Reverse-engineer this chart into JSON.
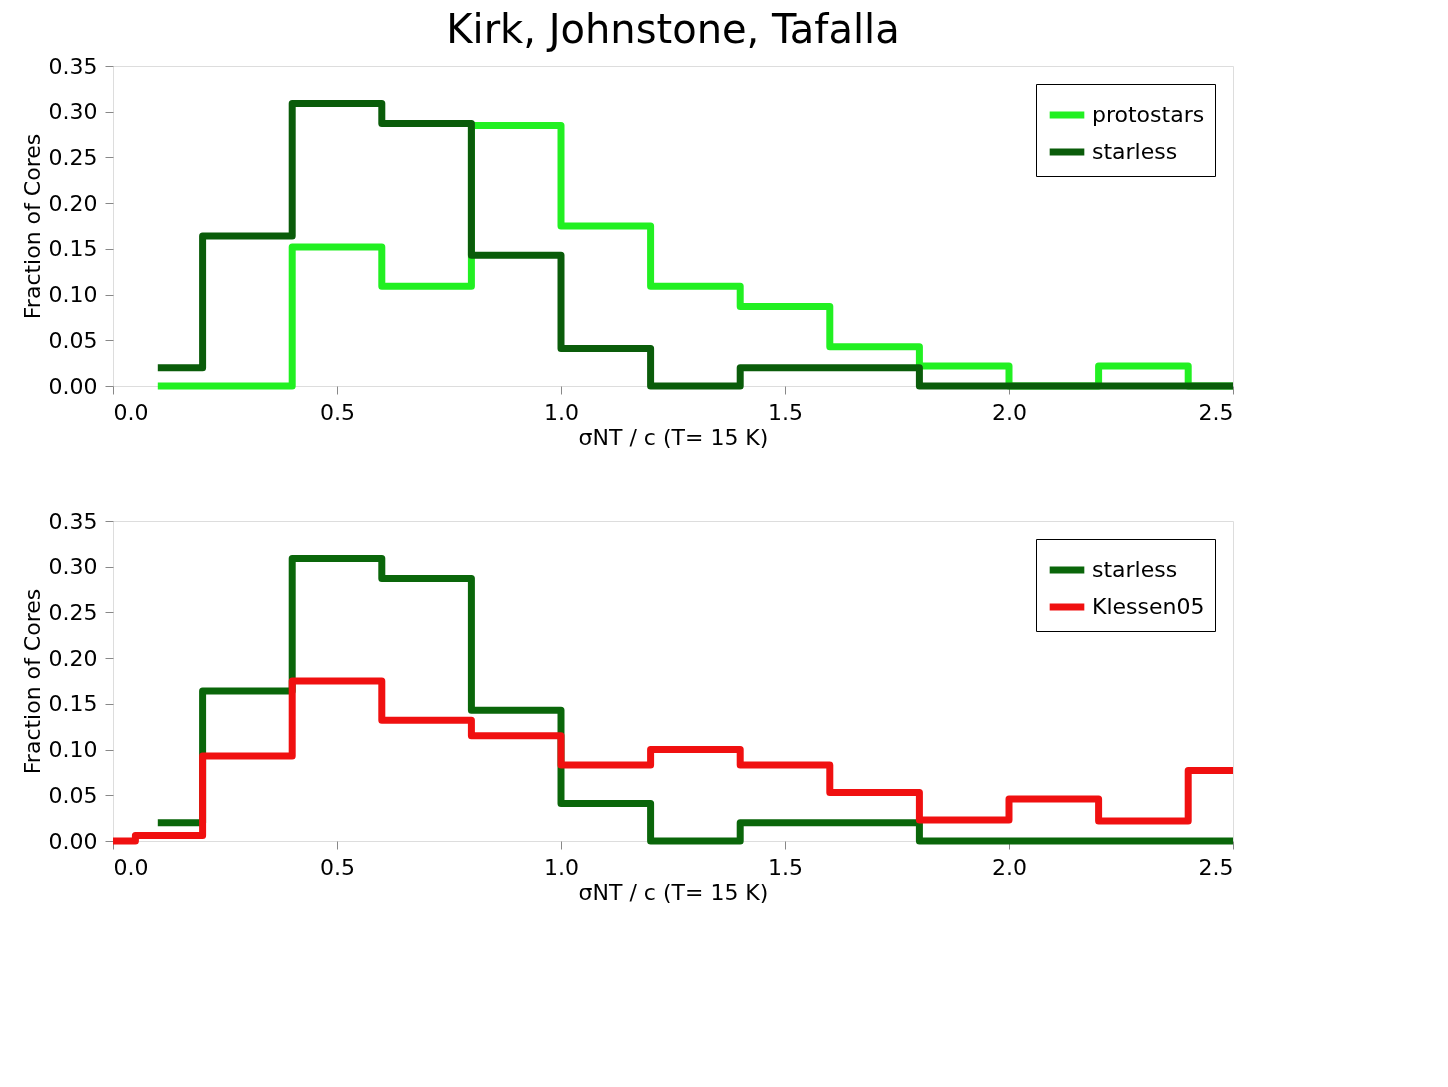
{
  "chart_data": [
    {
      "type": "histogram",
      "title": "Kirk, Johnstone, Tafalla",
      "xlabel": "σNT / c (T= 15 K)",
      "ylabel": "Fraction of Cores",
      "legend": "top right",
      "grid": false,
      "bins": [
        0.1,
        0.2,
        0.4,
        0.6,
        0.8,
        1.0,
        1.2,
        1.4,
        1.6,
        1.8,
        2.0,
        2.2,
        2.4,
        2.5
      ],
      "series": [
        {
          "name": "protostars",
          "color": "#22f022",
          "values": [
            0,
            0,
            0.152,
            0.109,
            0.285,
            0.175,
            0.109,
            0.087,
            0.043,
            0.022,
            0,
            0.022,
            0
          ]
        },
        {
          "name": "starless",
          "color": "#0a5c0a",
          "values": [
            0.02,
            0.164,
            0.309,
            0.287,
            0.143,
            0.041,
            0,
            0.02,
            0.02,
            0,
            0,
            0,
            0
          ]
        }
      ],
      "xlim": [
        0,
        2.5
      ],
      "ylim": [
        0,
        0.35
      ],
      "xticks": [
        {
          "value": 0,
          "label": "0.0"
        },
        0.5,
        {
          "value": 1,
          "label": "1.0"
        },
        1.5,
        {
          "value": 2,
          "label": "2.0"
        },
        2.5
      ],
      "yticks": [
        {
          "value": 0,
          "label": "0.00"
        },
        0.05,
        {
          "value": 0.1,
          "label": "0.10"
        },
        0.15,
        {
          "value": 0.2,
          "label": "0.20"
        },
        0.25,
        {
          "value": 0.3,
          "label": "0.30"
        },
        0.35
      ]
    },
    {
      "type": "step",
      "xlabel": "σNT / c (T= 15 K)",
      "ylabel": "Fraction of Cores",
      "legend": "top right",
      "grid": false,
      "series": [
        {
          "name": "starless",
          "color": "#0a660a",
          "x": [
            0.1,
            0.2,
            0.4,
            0.6,
            0.8,
            1.0,
            1.2,
            1.4,
            1.6,
            1.8,
            2.0,
            2.2,
            2.4,
            2.5
          ],
          "values": [
            0.02,
            0.164,
            0.309,
            0.287,
            0.143,
            0.041,
            0,
            0.02,
            0.02,
            0,
            0,
            0,
            0,
            0
          ]
        },
        {
          "name": "Klessen05",
          "color": "#f01010",
          "x": [
            0.0,
            0.05,
            0.2,
            0.4,
            0.6,
            0.8,
            1.0,
            1.2,
            1.4,
            1.6,
            1.8,
            2.0,
            2.2,
            2.4,
            2.5
          ],
          "values": [
            0,
            0.006,
            0.093,
            0.175,
            0.132,
            0.115,
            0.083,
            0.1,
            0.083,
            0.053,
            0.023,
            0.046,
            0.022,
            0.077,
            0.077
          ]
        }
      ],
      "xlim": [
        0,
        2.5
      ],
      "ylim": [
        0,
        0.35
      ],
      "xticks": [
        {
          "value": 0,
          "label": "0.0"
        },
        0.5,
        {
          "value": 1,
          "label": "1.0"
        },
        1.5,
        {
          "value": 2,
          "label": "2.0"
        },
        2.5
      ],
      "yticks": [
        {
          "value": 0,
          "label": "0.00"
        },
        0.05,
        {
          "value": 0.1,
          "label": "0.10"
        },
        0.15,
        {
          "value": 0.2,
          "label": "0.20"
        },
        0.25,
        {
          "value": 0.3,
          "label": "0.30"
        },
        0.35
      ]
    }
  ]
}
